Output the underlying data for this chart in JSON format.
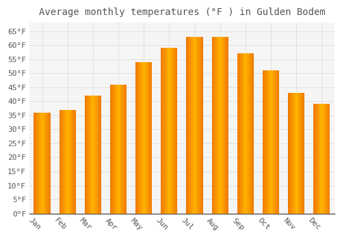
{
  "title": "Average monthly temperatures (°F ) in Gulden Bodem",
  "months": [
    "Jan",
    "Feb",
    "Mar",
    "Apr",
    "May",
    "Jun",
    "Jul",
    "Aug",
    "Sep",
    "Oct",
    "Nov",
    "Dec"
  ],
  "values": [
    36,
    37,
    42,
    46,
    54,
    59,
    63,
    63,
    57,
    51,
    43,
    39
  ],
  "bar_color_center": "#FFB300",
  "bar_color_edge": "#F07800",
  "ylim": [
    0,
    68
  ],
  "yticks": [
    0,
    5,
    10,
    15,
    20,
    25,
    30,
    35,
    40,
    45,
    50,
    55,
    60,
    65
  ],
  "ytick_labels": [
    "0°F",
    "5°F",
    "10°F",
    "15°F",
    "20°F",
    "25°F",
    "30°F",
    "35°F",
    "40°F",
    "45°F",
    "50°F",
    "55°F",
    "60°F",
    "65°F"
  ],
  "title_fontsize": 10,
  "tick_fontsize": 8,
  "background_color": "#ffffff",
  "plot_bg_color": "#f5f5f5",
  "grid_color": "#e0e0e0",
  "axis_color": "#555555",
  "label_color": "#555555",
  "x_label_rotation": -45,
  "bar_width": 0.65
}
